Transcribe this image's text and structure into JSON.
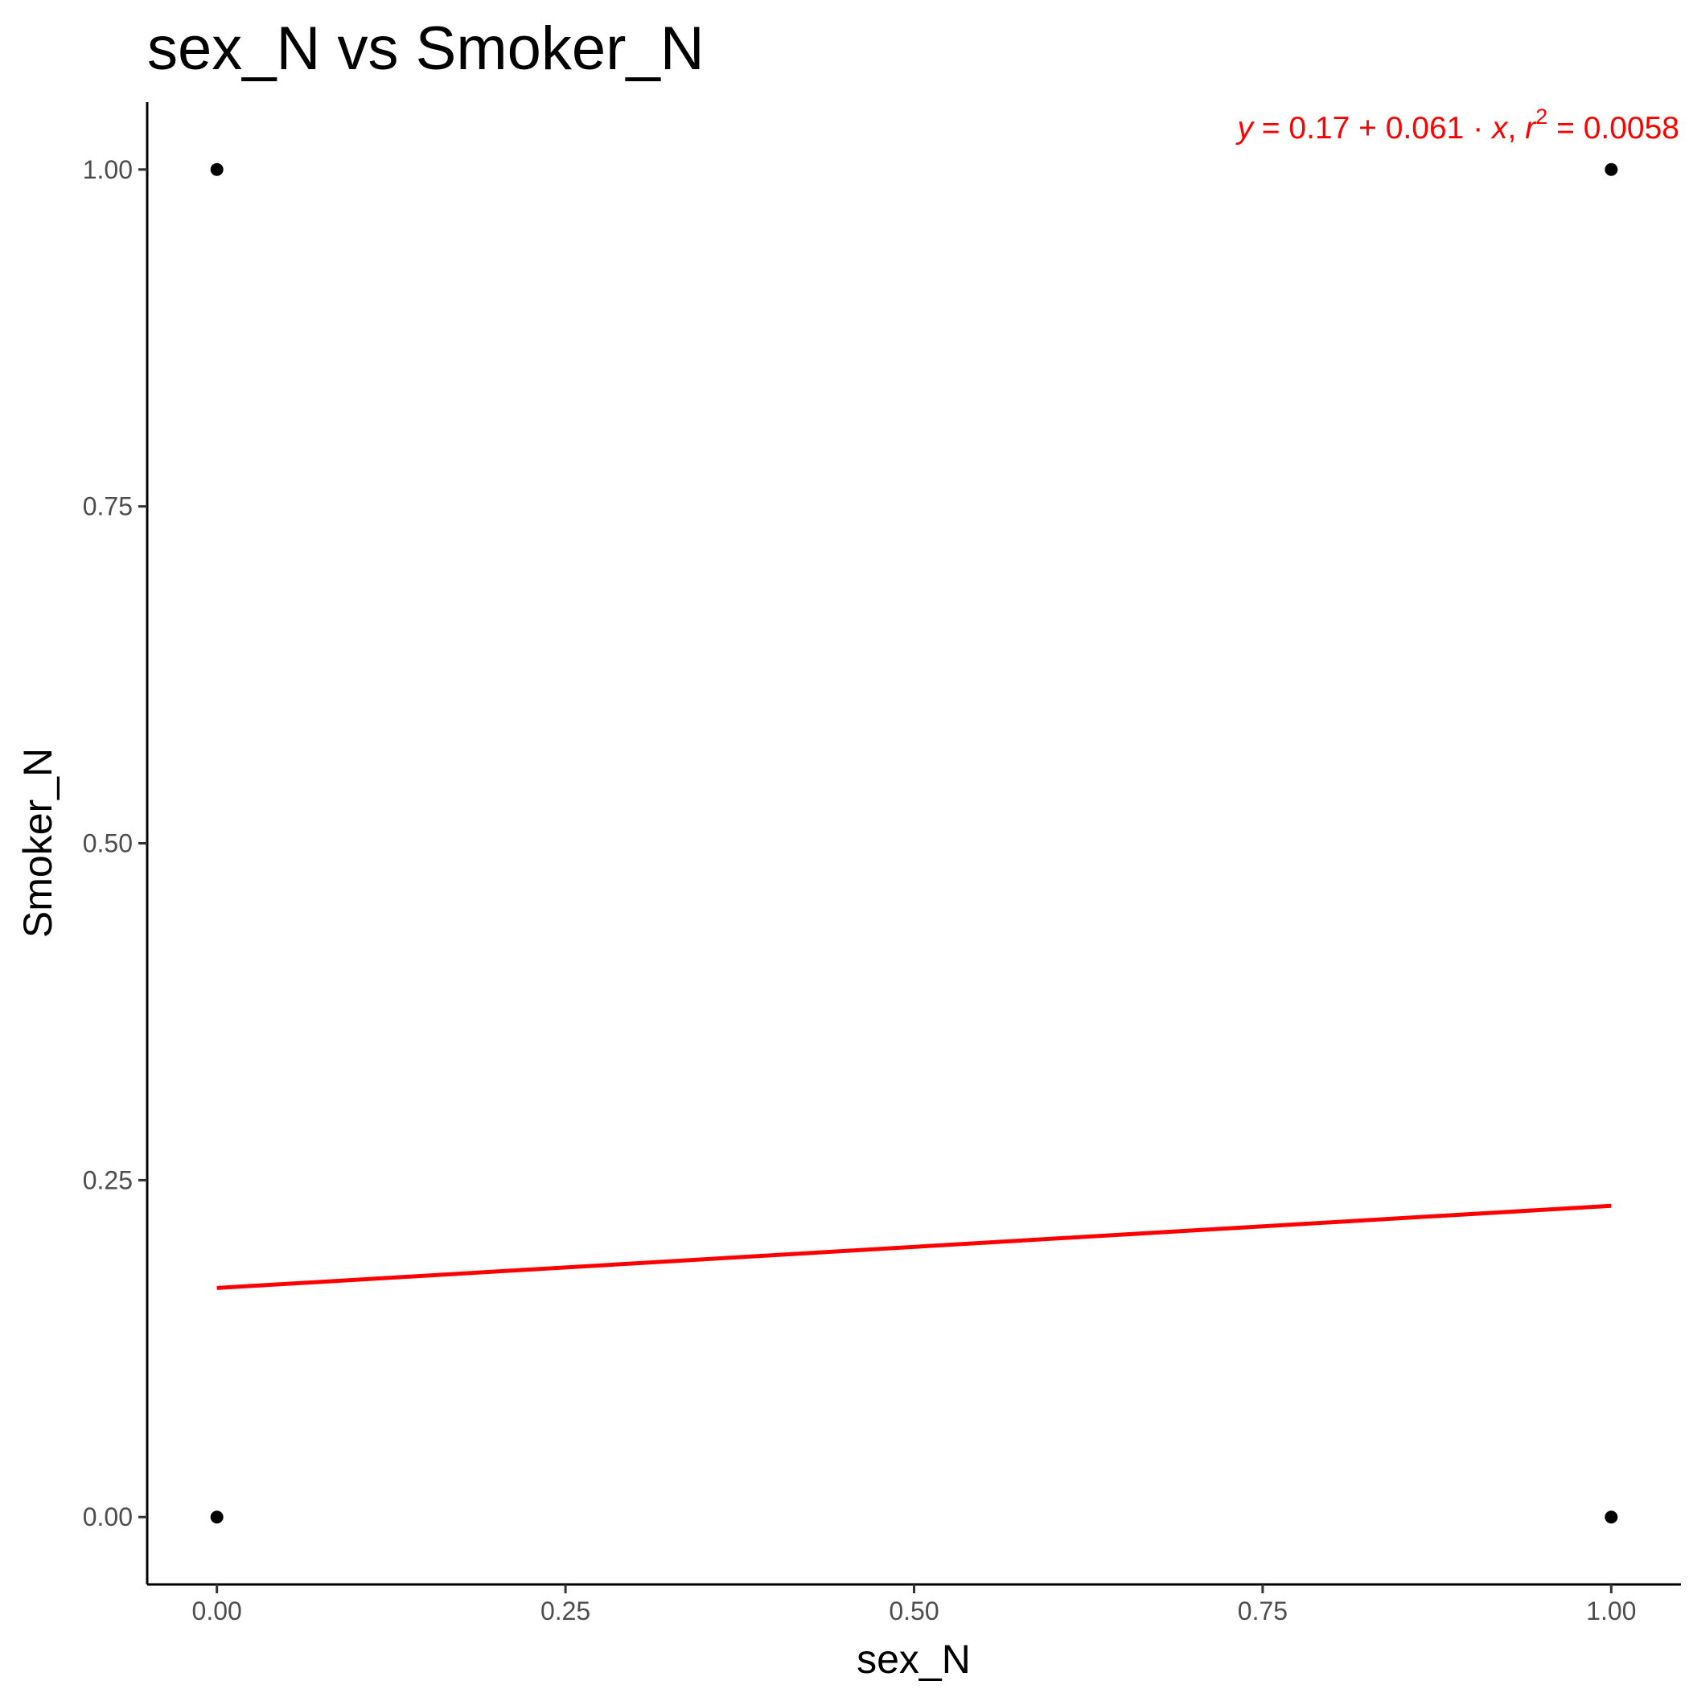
{
  "chart_data": {
    "type": "scatter",
    "title": "sex_N vs Smoker_N",
    "xlabel": "sex_N",
    "ylabel": "Smoker_N",
    "xlim": [
      -0.05,
      1.05
    ],
    "ylim": [
      -0.05,
      1.05
    ],
    "x_ticks": [
      0,
      0.25,
      0.5,
      0.75,
      1
    ],
    "x_tick_labels": [
      "0.00",
      "0.25",
      "0.50",
      "0.75",
      "1.00"
    ],
    "y_ticks": [
      0,
      0.25,
      0.5,
      0.75,
      1
    ],
    "y_tick_labels": [
      "0.00",
      "0.25",
      "0.50",
      "0.75",
      "1.00"
    ],
    "grid": false,
    "points": [
      {
        "x": 0,
        "y": 1
      },
      {
        "x": 0,
        "y": 0
      },
      {
        "x": 1,
        "y": 1
      },
      {
        "x": 1,
        "y": 0
      }
    ],
    "regression": {
      "intercept": 0.17,
      "slope": 0.061,
      "color": "#ff0000",
      "x_range": [
        0,
        1
      ]
    },
    "equation": {
      "y_var": "y",
      "lhs_op": " = ",
      "intercept": "0.17",
      "plus": " + ",
      "slope": "0.061",
      "dot": " · ",
      "x_var": "x",
      "sep": ",  ",
      "r_var": "r",
      "r_exp": "2",
      "r_eq": " = ",
      "r2_value": "0.0058"
    },
    "point_color": "#000000"
  }
}
